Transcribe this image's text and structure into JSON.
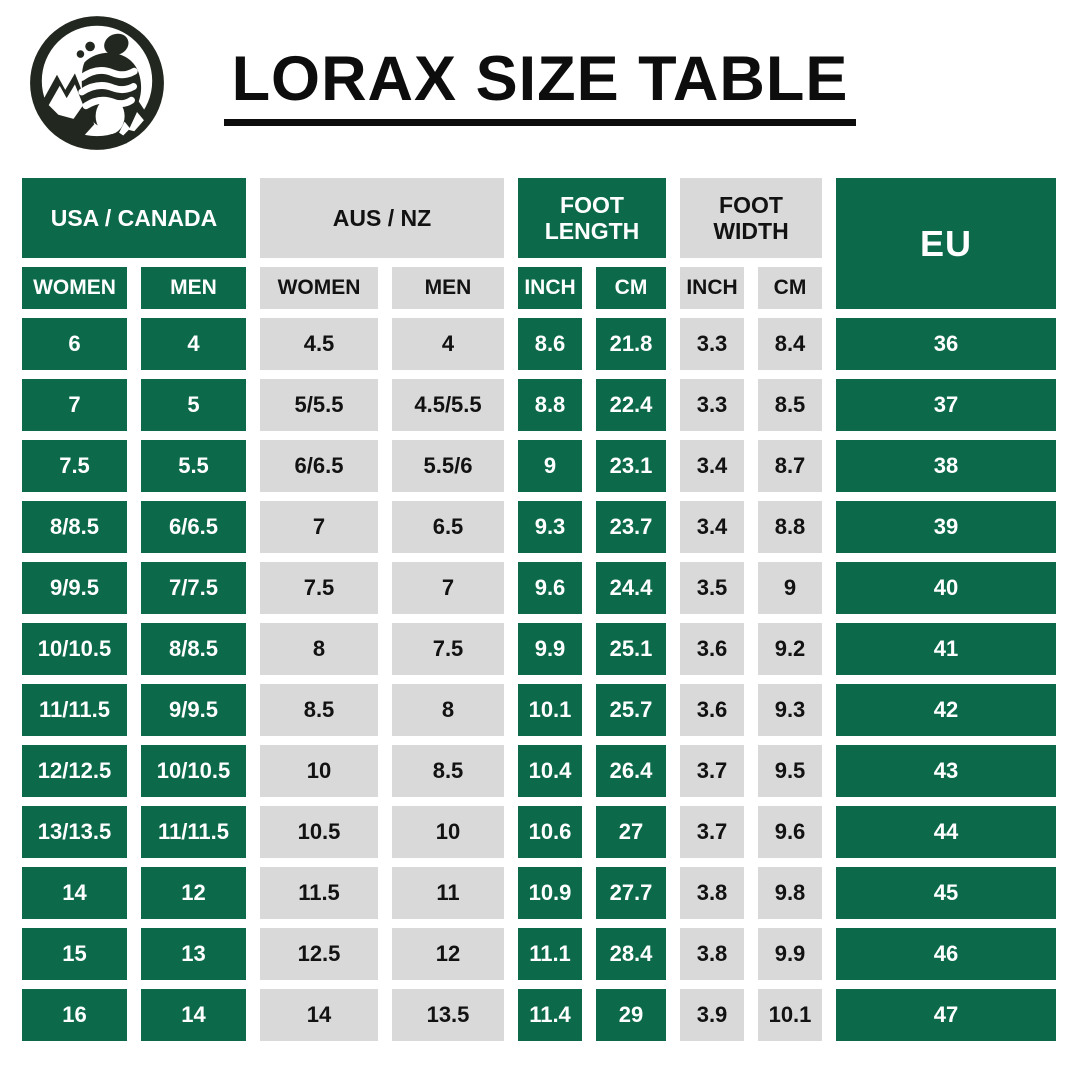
{
  "page": {
    "background": "#ffffff"
  },
  "header": {
    "title": "LORAX SIZE TABLE"
  },
  "logo": {
    "icon": "barefoot-mountain-icon",
    "circle_color": "#22281f",
    "inner_color": "#ffffff"
  },
  "colors": {
    "green": "#0c6a4b",
    "gray": "#d9d9d9",
    "text_on_green": "#ffffff",
    "text_on_gray": "#121212",
    "title_text": "#0d0d0d"
  },
  "chart_data": {
    "type": "table",
    "title": "LORAX SIZE TABLE",
    "groups": [
      {
        "label": "USA / CANADA",
        "style": "green",
        "span": 2
      },
      {
        "label": "AUS / NZ",
        "style": "gray",
        "span": 2
      },
      {
        "label": "FOOT LENGTH",
        "style": "green",
        "span": 2
      },
      {
        "label": "FOOT WIDTH",
        "style": "gray",
        "span": 2
      },
      {
        "label": "EU",
        "style": "green",
        "span": 1
      }
    ],
    "subheaders": [
      {
        "label": "WOMEN",
        "style": "green"
      },
      {
        "label": "MEN",
        "style": "green"
      },
      {
        "label": "WOMEN",
        "style": "gray"
      },
      {
        "label": "MEN",
        "style": "gray"
      },
      {
        "label": "INCH",
        "style": "green"
      },
      {
        "label": "CM",
        "style": "green"
      },
      {
        "label": "INCH",
        "style": "gray"
      },
      {
        "label": "CM",
        "style": "gray"
      }
    ],
    "column_styles": [
      "green",
      "green",
      "gray",
      "gray",
      "green",
      "green",
      "gray",
      "gray",
      "green"
    ],
    "rows": [
      [
        "6",
        "4",
        "4.5",
        "4",
        "8.6",
        "21.8",
        "3.3",
        "8.4",
        "36"
      ],
      [
        "7",
        "5",
        "5/5.5",
        "4.5/5.5",
        "8.8",
        "22.4",
        "3.3",
        "8.5",
        "37"
      ],
      [
        "7.5",
        "5.5",
        "6/6.5",
        "5.5/6",
        "9",
        "23.1",
        "3.4",
        "8.7",
        "38"
      ],
      [
        "8/8.5",
        "6/6.5",
        "7",
        "6.5",
        "9.3",
        "23.7",
        "3.4",
        "8.8",
        "39"
      ],
      [
        "9/9.5",
        "7/7.5",
        "7.5",
        "7",
        "9.6",
        "24.4",
        "3.5",
        "9",
        "40"
      ],
      [
        "10/10.5",
        "8/8.5",
        "8",
        "7.5",
        "9.9",
        "25.1",
        "3.6",
        "9.2",
        "41"
      ],
      [
        "11/11.5",
        "9/9.5",
        "8.5",
        "8",
        "10.1",
        "25.7",
        "3.6",
        "9.3",
        "42"
      ],
      [
        "12/12.5",
        "10/10.5",
        "10",
        "8.5",
        "10.4",
        "26.4",
        "3.7",
        "9.5",
        "43"
      ],
      [
        "13/13.5",
        "11/11.5",
        "10.5",
        "10",
        "10.6",
        "27",
        "3.7",
        "9.6",
        "44"
      ],
      [
        "14",
        "12",
        "11.5",
        "11",
        "10.9",
        "27.7",
        "3.8",
        "9.8",
        "45"
      ],
      [
        "15",
        "13",
        "12.5",
        "12",
        "11.1",
        "28.4",
        "3.8",
        "9.9",
        "46"
      ],
      [
        "16",
        "14",
        "14",
        "13.5",
        "11.4",
        "29",
        "3.9",
        "10.1",
        "47"
      ]
    ]
  }
}
